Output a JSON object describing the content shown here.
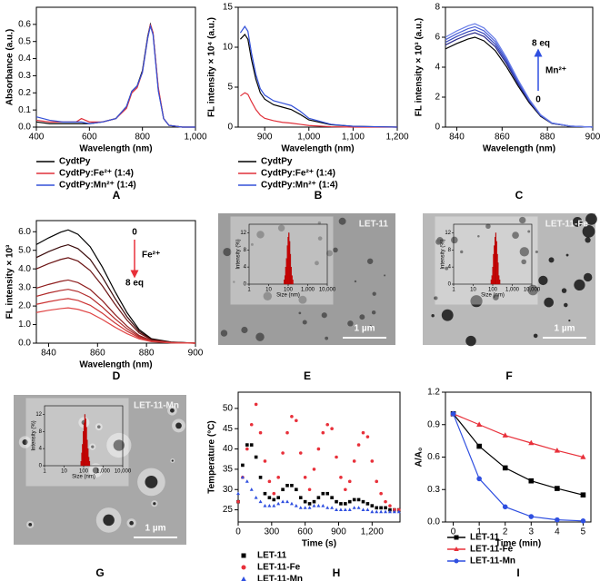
{
  "chart_data": [
    {
      "type": "line",
      "panel": "A",
      "xlabel": "Wavelength (nm)",
      "ylabel": "Absorbance (a.u.)",
      "x": [
        400,
        450,
        500,
        550,
        570,
        600,
        650,
        700,
        740,
        760,
        780,
        800,
        820,
        830,
        840,
        860,
        880,
        900,
        950,
        1000
      ],
      "series": [
        {
          "name": "CydtPy",
          "color": "#000000",
          "values": [
            0.03,
            0.02,
            0.02,
            0.02,
            0.02,
            0.02,
            0.03,
            0.05,
            0.12,
            0.21,
            0.24,
            0.33,
            0.53,
            0.6,
            0.55,
            0.22,
            0.05,
            0.01,
            0,
            0
          ]
        },
        {
          "name": "CydtPy:Fe²⁺ (1:4)",
          "color": "#e0303a",
          "values": [
            0.04,
            0.03,
            0.03,
            0.03,
            0.05,
            0.03,
            0.03,
            0.05,
            0.11,
            0.2,
            0.23,
            0.32,
            0.52,
            0.6,
            0.55,
            0.23,
            0.05,
            0.01,
            0,
            0
          ]
        },
        {
          "name": "CydtPy:Mn²⁺ (1:4)",
          "color": "#3350d8",
          "values": [
            0.06,
            0.04,
            0.03,
            0.03,
            0.03,
            0.02,
            0.03,
            0.05,
            0.12,
            0.21,
            0.24,
            0.32,
            0.52,
            0.59,
            0.54,
            0.21,
            0.05,
            0.01,
            0,
            0
          ]
        }
      ],
      "xlim": [
        400,
        1000
      ],
      "xticks": [
        400,
        600,
        800,
        {
          "value": 1000,
          "label": "1,000"
        }
      ],
      "ylim": [
        0,
        0.7
      ],
      "yticks": [
        {
          "value": 0,
          "label": "0.0"
        },
        0.1,
        0.2,
        0.3,
        0.4,
        0.5,
        0.6
      ],
      "legend": "below"
    },
    {
      "type": "line",
      "panel": "B",
      "xlabel": "Wavelength (nm)",
      "ylabel": "FL intensity × 10⁴ (a.u.)",
      "x": [
        845,
        855,
        862,
        870,
        880,
        890,
        900,
        920,
        940,
        960,
        980,
        1000,
        1050,
        1100,
        1150,
        1200
      ],
      "series": [
        {
          "name": "CydtPy",
          "color": "#000000",
          "values": [
            11.0,
            11.6,
            11.0,
            8.5,
            6.0,
            4.3,
            3.5,
            2.8,
            2.5,
            2.2,
            1.6,
            0.9,
            0.3,
            0.1,
            0.05,
            0
          ]
        },
        {
          "name": "CydtPy:Fe²⁺ (1:4)",
          "color": "#e0303a",
          "values": [
            3.9,
            4.3,
            4.1,
            3.2,
            2.2,
            1.5,
            1.1,
            0.8,
            0.6,
            0.5,
            0.35,
            0.2,
            0.05,
            0,
            0,
            0
          ]
        },
        {
          "name": "CydtPy:Mn²⁺ (1:4)",
          "color": "#3350d8",
          "values": [
            11.8,
            12.6,
            12.0,
            9.3,
            6.6,
            4.8,
            4.0,
            3.3,
            3.0,
            2.7,
            2.0,
            1.1,
            0.35,
            0.1,
            0.05,
            0
          ]
        }
      ],
      "xlim": [
        840,
        1200
      ],
      "xticks": [
        900,
        {
          "value": 1000,
          "label": "1,000"
        },
        {
          "value": 1100,
          "label": "1,100"
        },
        {
          "value": 1200,
          "label": "1,200"
        }
      ],
      "ylim": [
        0,
        15
      ],
      "yticks": [
        0,
        5,
        10,
        15
      ],
      "legend": "below"
    },
    {
      "type": "line",
      "panel": "C",
      "xlabel": "Wavelength (nm)",
      "ylabel": "FL intensity × 10³ (a.u.)",
      "annotations": [
        "8 eq",
        "Mn²⁺",
        "0"
      ],
      "x": [
        835,
        840,
        845,
        848,
        852,
        857,
        862,
        867,
        872,
        877,
        882,
        890,
        900
      ],
      "series": [
        {
          "color": "#000000",
          "values": [
            5.22,
            5.58,
            5.88,
            6.0,
            5.76,
            5.1,
            4.02,
            2.76,
            1.62,
            0.72,
            0.24,
            0.06,
            0
          ]
        },
        {
          "color": "#2a2a8a",
          "values": [
            5.48,
            5.86,
            6.17,
            6.3,
            6.05,
            5.36,
            4.22,
            2.9,
            1.7,
            0.76,
            0.25,
            0.06,
            0
          ]
        },
        {
          "color": "#3344bb",
          "values": [
            5.66,
            6.05,
            6.37,
            6.5,
            6.24,
            5.53,
            4.36,
            2.99,
            1.76,
            0.78,
            0.26,
            0.07,
            0
          ]
        },
        {
          "color": "#4a5fd6",
          "values": [
            5.83,
            6.23,
            6.57,
            6.7,
            6.43,
            5.7,
            4.49,
            3.08,
            1.81,
            0.8,
            0.27,
            0.07,
            0
          ]
        },
        {
          "color": "#6a7fe8",
          "values": [
            6.0,
            6.42,
            6.76,
            6.9,
            6.62,
            5.87,
            4.62,
            3.17,
            1.86,
            0.83,
            0.28,
            0.07,
            0
          ]
        }
      ],
      "xlim": [
        835,
        900
      ],
      "xticks": [
        840,
        860,
        880,
        900
      ],
      "ylim": [
        0,
        8
      ],
      "yticks": [
        0,
        2,
        4,
        6,
        8
      ]
    },
    {
      "type": "line",
      "panel": "D",
      "xlabel": "Wavelength (nm)",
      "ylabel": "FL intensity × 10³",
      "annotations": [
        "0",
        "Fe²⁺",
        "8 eq"
      ],
      "x": [
        835,
        840,
        845,
        848,
        852,
        857,
        862,
        867,
        872,
        877,
        882,
        890,
        900
      ],
      "series": [
        {
          "color": "#000000",
          "values": [
            5.31,
            5.67,
            5.98,
            6.1,
            5.86,
            5.19,
            4.09,
            2.81,
            1.65,
            0.73,
            0.24,
            0.06,
            0
          ]
        },
        {
          "color": "#3a0a0a",
          "values": [
            4.61,
            4.93,
            5.19,
            5.3,
            5.09,
            4.51,
            3.55,
            2.44,
            1.43,
            0.64,
            0.21,
            0.05,
            0
          ]
        },
        {
          "color": "#6b1414",
          "values": [
            4.0,
            4.28,
            4.51,
            4.6,
            4.42,
            3.91,
            3.08,
            2.12,
            1.24,
            0.55,
            0.18,
            0.05,
            0
          ]
        },
        {
          "color": "#8f1e1e",
          "values": [
            2.96,
            3.16,
            3.33,
            3.4,
            3.26,
            2.89,
            2.28,
            1.56,
            0.92,
            0.41,
            0.14,
            0.03,
            0
          ]
        },
        {
          "color": "#b02828",
          "values": [
            2.52,
            2.7,
            2.84,
            2.9,
            2.78,
            2.47,
            1.94,
            1.33,
            0.78,
            0.35,
            0.12,
            0.03,
            0
          ]
        },
        {
          "color": "#cc3333",
          "values": [
            2.09,
            2.23,
            2.35,
            2.4,
            2.3,
            2.04,
            1.61,
            1.1,
            0.65,
            0.29,
            0.1,
            0.02,
            0
          ]
        },
        {
          "color": "#e04545",
          "values": [
            1.65,
            1.77,
            1.86,
            1.9,
            1.82,
            1.62,
            1.27,
            0.87,
            0.51,
            0.23,
            0.08,
            0.02,
            0
          ]
        }
      ],
      "xlim": [
        835,
        900
      ],
      "xticks": [
        840,
        860,
        880,
        900
      ],
      "ylim": [
        0,
        6.6
      ],
      "yticks": [
        {
          "value": 0,
          "label": "0.0"
        },
        {
          "value": 1,
          "label": "1.0"
        },
        {
          "value": 2,
          "label": "2.0"
        },
        {
          "value": 3,
          "label": "3.0"
        },
        {
          "value": 4,
          "label": "4.0"
        },
        {
          "value": 5,
          "label": "5.0"
        },
        {
          "value": 6,
          "label": "6.0"
        }
      ]
    },
    {
      "type": "histogram",
      "panel": "E",
      "image_label": "LET-11",
      "scale_bar": "1 µm",
      "xlabel": "Size (nm)",
      "ylabel": "Intensity (%)",
      "xlog": true,
      "color": "#e00000",
      "bins": [
        60,
        66,
        72,
        79,
        87,
        95,
        104,
        114,
        125,
        137,
        150,
        165,
        181
      ],
      "values": [
        1,
        2,
        4,
        6,
        9,
        11,
        12,
        10,
        7,
        4,
        2,
        1
      ],
      "xlim": [
        1,
        10000
      ],
      "xticks": [
        1,
        10,
        100,
        {
          "value": 1000,
          "label": "1,000"
        },
        {
          "value": 10000,
          "label": "10,000"
        }
      ],
      "ylim": [
        0,
        14
      ],
      "yticks": [
        0,
        4,
        8,
        12
      ]
    },
    {
      "type": "histogram",
      "panel": "F",
      "image_label": "LET-11-Fe",
      "scale_bar": "1 µm",
      "xlabel": "Size (nm)",
      "ylabel": "Intensity (%)",
      "xlog": true,
      "color": "#e00000",
      "bins": [
        80,
        88,
        96,
        105,
        115,
        126,
        138,
        151,
        165,
        181,
        198,
        217,
        238
      ],
      "values": [
        1,
        2,
        4,
        7,
        9,
        11,
        12,
        10,
        7,
        5,
        2,
        1
      ],
      "xlim": [
        1,
        10000
      ],
      "xticks": [
        1,
        10,
        100,
        {
          "value": 1000,
          "label": "1,000"
        },
        {
          "value": 10000,
          "label": "10,000"
        }
      ],
      "ylim": [
        0,
        14
      ],
      "yticks": [
        0,
        4,
        8,
        12
      ]
    },
    {
      "type": "histogram",
      "panel": "G",
      "image_label": "LET-11-Mn",
      "scale_bar": "1 µm",
      "xlabel": "Size (nm)",
      "ylabel": "Intensity (%)",
      "xlog": true,
      "color": "#e00000",
      "bins": [
        70,
        77,
        84,
        92,
        101,
        111,
        121,
        133,
        146,
        160,
        175,
        192,
        210
      ],
      "values": [
        1,
        3,
        5,
        8,
        10,
        12,
        11,
        9,
        6,
        4,
        2,
        1
      ],
      "xlim": [
        1,
        10000
      ],
      "xticks": [
        1,
        10,
        100,
        {
          "value": 1000,
          "label": "1,000"
        },
        {
          "value": 10000,
          "label": "10,000"
        }
      ],
      "ylim": [
        0,
        14
      ],
      "yticks": [
        0,
        4,
        8,
        12
      ]
    },
    {
      "type": "scatter",
      "panel": "H",
      "xlabel": "Time (s)",
      "ylabel": "Temperature (°C)",
      "x": [
        0,
        40,
        80,
        120,
        160,
        200,
        240,
        280,
        320,
        360,
        400,
        440,
        480,
        520,
        560,
        600,
        640,
        680,
        720,
        760,
        800,
        840,
        880,
        920,
        960,
        1000,
        1040,
        1080,
        1120,
        1160,
        1200,
        1240,
        1280,
        1320,
        1360,
        1400,
        1440
      ],
      "series": [
        {
          "name": "LET-11",
          "color": "#000000",
          "marker": "square",
          "values": [
            27,
            36,
            41,
            41,
            38,
            33,
            29,
            28,
            27.5,
            28,
            30,
            31,
            31,
            30,
            28,
            27,
            26.5,
            27,
            28,
            29,
            29,
            28,
            27,
            26.5,
            26.5,
            27,
            27.5,
            27.5,
            27,
            26.5,
            26,
            25.5,
            25.5,
            25.5,
            25,
            25,
            25
          ]
        },
        {
          "name": "LET-11-Fe",
          "color": "#e8303a",
          "marker": "circle",
          "values": [
            27,
            33,
            40,
            46,
            51,
            44,
            37,
            32,
            29,
            33,
            39,
            44,
            48,
            47,
            39,
            33,
            30,
            35,
            40,
            44,
            46,
            45,
            38,
            33,
            30,
            32,
            37,
            41,
            44,
            43,
            37,
            32,
            29,
            27,
            26,
            25,
            25
          ]
        },
        {
          "name": "LET-11-Mn",
          "color": "#2f4fe0",
          "marker": "triangle",
          "values": [
            29,
            33,
            32,
            30,
            28,
            27,
            26,
            26,
            26,
            26.5,
            27,
            27,
            26.5,
            26,
            25.5,
            25.5,
            25.5,
            26,
            26,
            26,
            25.5,
            25.5,
            25,
            25,
            25,
            25,
            25.5,
            25.5,
            25,
            25,
            24.5,
            24.5,
            24.5,
            24.5,
            24.5,
            24.5,
            24.5
          ]
        }
      ],
      "xlim": [
        0,
        1450
      ],
      "xticks": [
        0,
        300,
        600,
        900,
        {
          "value": 1200,
          "label": "1,200"
        }
      ],
      "ylim": [
        22,
        54
      ],
      "yticks": [
        25,
        30,
        35,
        40,
        45,
        50
      ],
      "legend": "below"
    },
    {
      "type": "line",
      "panel": "I",
      "xlabel": "Time (min)",
      "ylabel": "A/A₀",
      "x": [
        0,
        1,
        2,
        3,
        4,
        5
      ],
      "series": [
        {
          "name": "LET-11",
          "color": "#000000",
          "marker": "square",
          "values": [
            1,
            0.7,
            0.5,
            0.38,
            0.31,
            0.25
          ]
        },
        {
          "name": "LET-11-Fe",
          "color": "#e8303a",
          "marker": "triangle",
          "values": [
            1,
            0.9,
            0.8,
            0.73,
            0.66,
            0.6
          ]
        },
        {
          "name": "LET-11-Mn",
          "color": "#2f4fe0",
          "marker": "circle",
          "values": [
            1,
            0.4,
            0.14,
            0.05,
            0.02,
            0.01
          ]
        }
      ],
      "xlim": [
        -0.3,
        5.3
      ],
      "xticks": [
        0,
        1,
        2,
        3,
        4,
        5
      ],
      "ylim": [
        0,
        1.2
      ],
      "yticks": [
        {
          "value": 0,
          "label": "0.0"
        },
        0.3,
        0.6,
        0.9,
        {
          "value": 1.2,
          "label": "1.2"
        }
      ],
      "legend": "below"
    }
  ]
}
